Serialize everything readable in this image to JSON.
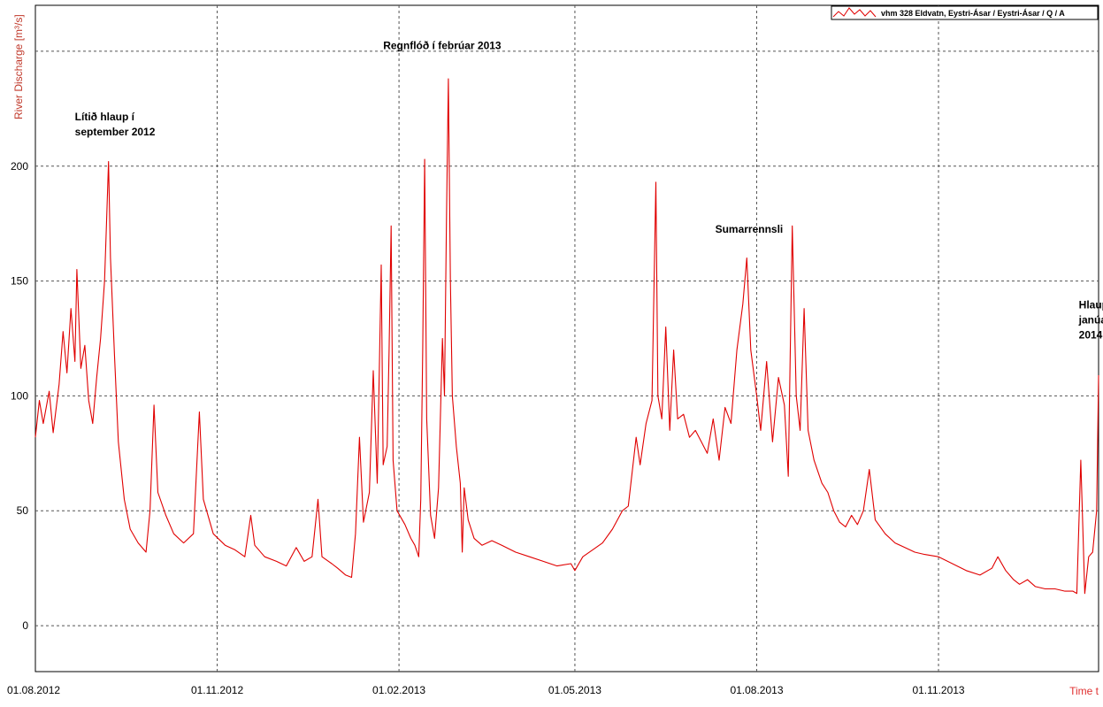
{
  "chart_data": {
    "type": "line",
    "xlabel": "Time t",
    "ylabel": "River Discharge [m³/s]",
    "ylim": [
      -20,
      270
    ],
    "xlim": [
      "2012-08-01",
      "2014-01-21"
    ],
    "y_ticks": [
      0,
      50,
      100,
      150,
      200
    ],
    "x_ticks": [
      {
        "date": "2012-08-01",
        "label": "01.08.2012"
      },
      {
        "date": "2012-11-01",
        "label": "01.11.2012"
      },
      {
        "date": "2013-02-01",
        "label": "01.02.2013"
      },
      {
        "date": "2013-05-01",
        "label": "01.05.2013"
      },
      {
        "date": "2013-08-01",
        "label": "01.08.2013"
      },
      {
        "date": "2013-11-01",
        "label": "01.11.2013"
      }
    ],
    "grid": true,
    "legend_position": "top-right",
    "colors": {
      "series": "#e00000",
      "axis_label": "#c0392b",
      "grid": "#555555"
    },
    "series": [
      {
        "name": "vhm 328 Eldvatn, Eystri-Ásar / Eystri-Ásar / Q / A",
        "points": [
          [
            "2012-08-01",
            82
          ],
          [
            "2012-08-03",
            98
          ],
          [
            "2012-08-05",
            88
          ],
          [
            "2012-08-08",
            102
          ],
          [
            "2012-08-10",
            84
          ],
          [
            "2012-08-13",
            105
          ],
          [
            "2012-08-15",
            128
          ],
          [
            "2012-08-17",
            110
          ],
          [
            "2012-08-19",
            138
          ],
          [
            "2012-08-21",
            115
          ],
          [
            "2012-08-22",
            155
          ],
          [
            "2012-08-24",
            112
          ],
          [
            "2012-08-26",
            122
          ],
          [
            "2012-08-28",
            98
          ],
          [
            "2012-08-30",
            88
          ],
          [
            "2012-09-01",
            108
          ],
          [
            "2012-09-03",
            125
          ],
          [
            "2012-09-05",
            150
          ],
          [
            "2012-09-06",
            175
          ],
          [
            "2012-09-07",
            202
          ],
          [
            "2012-09-08",
            160
          ],
          [
            "2012-09-10",
            118
          ],
          [
            "2012-09-12",
            80
          ],
          [
            "2012-09-15",
            55
          ],
          [
            "2012-09-18",
            42
          ],
          [
            "2012-09-22",
            36
          ],
          [
            "2012-09-26",
            32
          ],
          [
            "2012-09-28",
            50
          ],
          [
            "2012-09-30",
            96
          ],
          [
            "2012-10-02",
            58
          ],
          [
            "2012-10-06",
            48
          ],
          [
            "2012-10-10",
            40
          ],
          [
            "2012-10-15",
            36
          ],
          [
            "2012-10-20",
            40
          ],
          [
            "2012-10-23",
            93
          ],
          [
            "2012-10-25",
            55
          ],
          [
            "2012-10-30",
            40
          ],
          [
            "2012-11-05",
            35
          ],
          [
            "2012-11-10",
            33
          ],
          [
            "2012-11-15",
            30
          ],
          [
            "2012-11-18",
            48
          ],
          [
            "2012-11-20",
            35
          ],
          [
            "2012-11-25",
            30
          ],
          [
            "2012-12-01",
            28
          ],
          [
            "2012-12-06",
            26
          ],
          [
            "2012-12-11",
            34
          ],
          [
            "2012-12-15",
            28
          ],
          [
            "2012-12-19",
            30
          ],
          [
            "2012-12-22",
            55
          ],
          [
            "2012-12-24",
            30
          ],
          [
            "2012-12-29",
            27
          ],
          [
            "2013-01-01",
            25
          ],
          [
            "2013-01-05",
            22
          ],
          [
            "2013-01-08",
            21
          ],
          [
            "2013-01-10",
            40
          ],
          [
            "2013-01-12",
            82
          ],
          [
            "2013-01-14",
            45
          ],
          [
            "2013-01-17",
            58
          ],
          [
            "2013-01-19",
            111
          ],
          [
            "2013-01-21",
            62
          ],
          [
            "2013-01-23",
            157
          ],
          [
            "2013-01-24",
            70
          ],
          [
            "2013-01-26",
            78
          ],
          [
            "2013-01-27",
            120
          ],
          [
            "2013-01-28",
            174
          ],
          [
            "2013-01-29",
            72
          ],
          [
            "2013-01-31",
            50
          ],
          [
            "2013-02-04",
            44
          ],
          [
            "2013-02-07",
            38
          ],
          [
            "2013-02-09",
            35
          ],
          [
            "2013-02-11",
            30
          ],
          [
            "2013-02-12",
            55
          ],
          [
            "2013-02-13",
            120
          ],
          [
            "2013-02-14",
            203
          ],
          [
            "2013-02-15",
            90
          ],
          [
            "2013-02-17",
            48
          ],
          [
            "2013-02-19",
            38
          ],
          [
            "2013-02-21",
            60
          ],
          [
            "2013-02-23",
            125
          ],
          [
            "2013-02-24",
            100
          ],
          [
            "2013-02-25",
            175
          ],
          [
            "2013-02-26",
            238
          ],
          [
            "2013-02-27",
            150
          ],
          [
            "2013-02-28",
            100
          ],
          [
            "2013-03-02",
            78
          ],
          [
            "2013-03-04",
            62
          ],
          [
            "2013-03-05",
            32
          ],
          [
            "2013-03-06",
            60
          ],
          [
            "2013-03-08",
            46
          ],
          [
            "2013-03-11",
            38
          ],
          [
            "2013-03-15",
            35
          ],
          [
            "2013-03-20",
            37
          ],
          [
            "2013-03-25",
            35
          ],
          [
            "2013-04-01",
            32
          ],
          [
            "2013-04-08",
            30
          ],
          [
            "2013-04-15",
            28
          ],
          [
            "2013-04-22",
            26
          ],
          [
            "2013-04-29",
            27
          ],
          [
            "2013-05-01",
            24
          ],
          [
            "2013-05-05",
            30
          ],
          [
            "2013-05-10",
            33
          ],
          [
            "2013-05-15",
            36
          ],
          [
            "2013-05-20",
            42
          ],
          [
            "2013-05-25",
            50
          ],
          [
            "2013-05-28",
            52
          ],
          [
            "2013-06-01",
            82
          ],
          [
            "2013-06-03",
            70
          ],
          [
            "2013-06-06",
            88
          ],
          [
            "2013-06-09",
            98
          ],
          [
            "2013-06-11",
            193
          ],
          [
            "2013-06-12",
            100
          ],
          [
            "2013-06-14",
            90
          ],
          [
            "2013-06-16",
            130
          ],
          [
            "2013-06-18",
            85
          ],
          [
            "2013-06-20",
            120
          ],
          [
            "2013-06-22",
            90
          ],
          [
            "2013-06-25",
            92
          ],
          [
            "2013-06-28",
            82
          ],
          [
            "2013-07-01",
            85
          ],
          [
            "2013-07-04",
            80
          ],
          [
            "2013-07-07",
            75
          ],
          [
            "2013-07-10",
            90
          ],
          [
            "2013-07-13",
            72
          ],
          [
            "2013-07-16",
            95
          ],
          [
            "2013-07-19",
            88
          ],
          [
            "2013-07-22",
            120
          ],
          [
            "2013-07-25",
            140
          ],
          [
            "2013-07-27",
            160
          ],
          [
            "2013-07-29",
            120
          ],
          [
            "2013-08-01",
            100
          ],
          [
            "2013-08-03",
            85
          ],
          [
            "2013-08-06",
            115
          ],
          [
            "2013-08-09",
            80
          ],
          [
            "2013-08-12",
            108
          ],
          [
            "2013-08-15",
            96
          ],
          [
            "2013-08-17",
            65
          ],
          [
            "2013-08-19",
            174
          ],
          [
            "2013-08-21",
            100
          ],
          [
            "2013-08-23",
            85
          ],
          [
            "2013-08-25",
            138
          ],
          [
            "2013-08-27",
            85
          ],
          [
            "2013-08-30",
            72
          ],
          [
            "2013-09-03",
            62
          ],
          [
            "2013-09-06",
            58
          ],
          [
            "2013-09-09",
            50
          ],
          [
            "2013-09-12",
            45
          ],
          [
            "2013-09-15",
            43
          ],
          [
            "2013-09-18",
            48
          ],
          [
            "2013-09-21",
            44
          ],
          [
            "2013-09-24",
            50
          ],
          [
            "2013-09-27",
            68
          ],
          [
            "2013-09-30",
            46
          ],
          [
            "2013-10-05",
            40
          ],
          [
            "2013-10-10",
            36
          ],
          [
            "2013-10-15",
            34
          ],
          [
            "2013-10-20",
            32
          ],
          [
            "2013-10-25",
            31
          ],
          [
            "2013-11-01",
            30
          ],
          [
            "2013-11-08",
            27
          ],
          [
            "2013-11-15",
            24
          ],
          [
            "2013-11-22",
            22
          ],
          [
            "2013-11-28",
            25
          ],
          [
            "2013-12-01",
            30
          ],
          [
            "2013-12-05",
            24
          ],
          [
            "2013-12-09",
            20
          ],
          [
            "2013-12-12",
            18
          ],
          [
            "2013-12-16",
            20
          ],
          [
            "2013-12-20",
            17
          ],
          [
            "2013-12-25",
            16
          ],
          [
            "2013-12-30",
            16
          ],
          [
            "2014-01-04",
            15
          ],
          [
            "2014-01-08",
            15
          ],
          [
            "2014-01-10",
            14
          ],
          [
            "2014-01-12",
            72
          ],
          [
            "2014-01-14",
            14
          ],
          [
            "2014-01-16",
            30
          ],
          [
            "2014-01-18",
            32
          ],
          [
            "2014-01-20",
            50
          ],
          [
            "2014-01-21",
            109
          ]
        ]
      }
    ],
    "annotations": [
      {
        "date": "2012-08-21",
        "value": 220,
        "lines": [
          "Lítið hlaup í",
          "september 2012"
        ]
      },
      {
        "date": "2013-01-24",
        "value": 251,
        "lines": [
          "Regnflóð í febrúar 2013"
        ]
      },
      {
        "date": "2013-07-11",
        "value": 171,
        "lines": [
          "Sumarrennsli"
        ]
      },
      {
        "date": "2014-01-11",
        "value": 138,
        "lines": [
          "Hlaup í",
          "janúar",
          "2014"
        ]
      }
    ]
  }
}
